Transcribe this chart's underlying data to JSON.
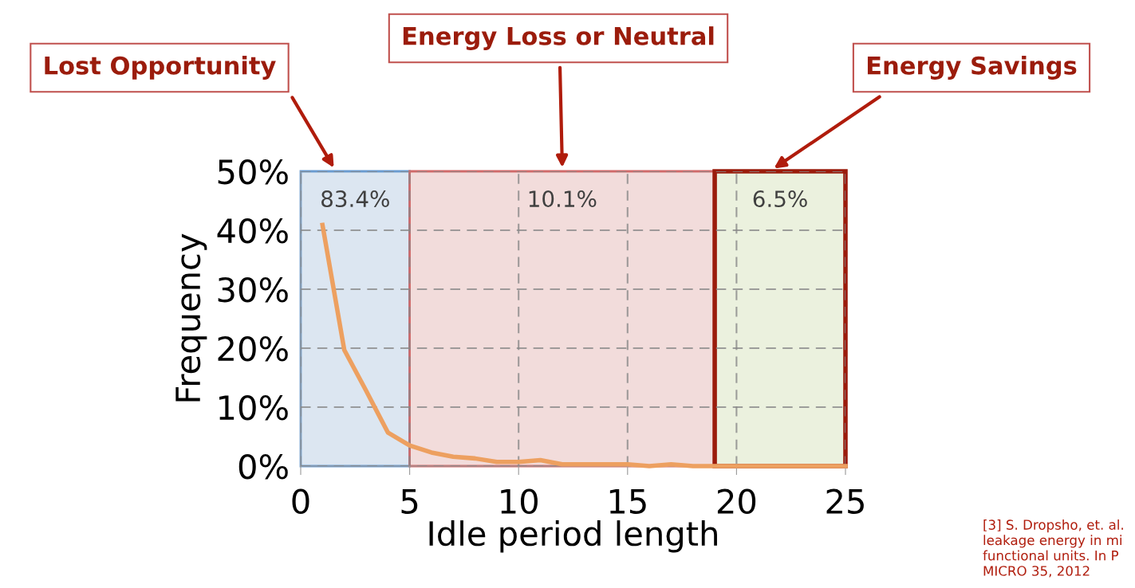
{
  "chart_data": {
    "type": "line",
    "xlabel": "Idle period length",
    "ylabel": "Frequency",
    "x": [
      1,
      2,
      3,
      4,
      5,
      6,
      7,
      8,
      9,
      10,
      11,
      12,
      13,
      14,
      15,
      16,
      17,
      18,
      19,
      20,
      21,
      22,
      23,
      24,
      25
    ],
    "series": [
      {
        "color": "#eda060",
        "values": [
          40.9,
          19.7,
          12.8,
          5.7,
          3.5,
          2.3,
          1.6,
          1.3,
          0.7,
          0.7,
          1.0,
          0.3,
          0.3,
          0.3,
          0.3,
          0.0,
          0.3,
          0.0,
          0.0,
          0.0,
          0.0,
          0.0,
          0.0,
          0.0,
          0.0
        ]
      }
    ],
    "xlim": [
      0,
      25
    ],
    "xticks": [
      0,
      5,
      10,
      15,
      20,
      25
    ],
    "ylim": [
      0,
      50
    ],
    "yticks": [
      {
        "value": 0,
        "label": "0%"
      },
      {
        "value": 10,
        "label": "10%"
      },
      {
        "value": 20,
        "label": "20%"
      },
      {
        "value": 30,
        "label": "30%"
      },
      {
        "value": 40,
        "label": "40%"
      },
      {
        "value": 50,
        "label": "50%"
      }
    ],
    "grid": true,
    "line_style": "solid",
    "marker": "none",
    "bands": [
      {
        "axis": "x",
        "from": 0,
        "to": 5,
        "label": "83.4%",
        "color": "#dce6f1"
      },
      {
        "axis": "x",
        "from": 5,
        "to": 19,
        "label": "10.1%",
        "color": "#f2dcdb"
      },
      {
        "axis": "x",
        "from": 19,
        "to": 25,
        "label": "6.5%",
        "color": "#ebf1de"
      }
    ],
    "annotations": [
      "Lost Opportunity",
      "Energy Loss or Neutral",
      "Energy Savings",
      "[3] S. Dropsho, et. al.\nleakage energy in mi\nfunctional units. In P\nMICRO 35, 2012"
    ]
  }
}
